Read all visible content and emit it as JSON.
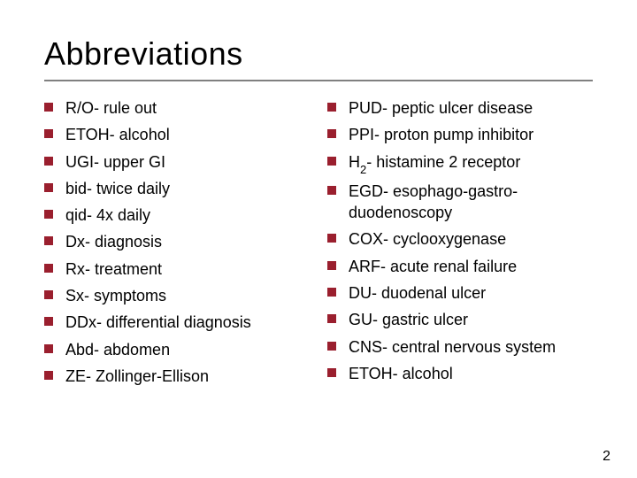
{
  "title": "Abbreviations",
  "bullet_color": "#9a1f2e",
  "rule_color": "#808080",
  "background_color": "#ffffff",
  "text_color": "#000000",
  "title_fontsize": 36,
  "body_fontsize": 18,
  "left": {
    "items": [
      "R/O- rule out",
      "ETOH- alcohol",
      "UGI- upper GI",
      "bid- twice daily",
      "qid- 4x daily",
      "Dx- diagnosis",
      "Rx- treatment",
      "Sx- symptoms",
      "DDx- differential diagnosis",
      "Abd- abdomen",
      "ZE- Zollinger-Ellison"
    ]
  },
  "right": {
    "items": [
      "PUD- peptic ulcer disease",
      "PPI- proton pump inhibitor",
      "H|2|- histamine 2 receptor",
      "EGD- esophago-gastro-duodenoscopy",
      "COX- cyclooxygenase",
      "ARF- acute renal failure",
      "DU- duodenal ulcer",
      "GU- gastric ulcer",
      "CNS- central nervous system",
      "ETOH- alcohol"
    ]
  },
  "page_number": "2"
}
